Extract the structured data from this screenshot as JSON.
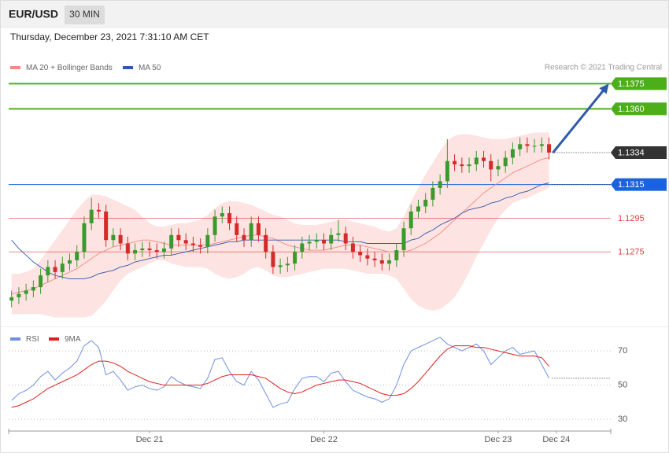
{
  "header": {
    "symbol": "EUR/USD",
    "interval": "30 MIN",
    "timestamp": "Thursday, December 23, 2021 7:31:10 AM CET"
  },
  "chart_data": [
    {
      "type": "candlestick",
      "credit": "Research © 2021 Trading Central",
      "xlim": [
        -0.4,
        82.5
      ],
      "ylim": [
        1.1233,
        1.1392
      ],
      "up_color": "#3a9a2e",
      "down_color": "#d42a2a",
      "open": [
        1.1246,
        1.1248,
        1.125,
        1.1252,
        1.1254,
        1.1261,
        1.1266,
        1.1263,
        1.1268,
        1.127,
        1.1275,
        1.1292,
        1.13,
        1.1299,
        1.1282,
        1.1285,
        1.128,
        1.1274,
        1.1276,
        1.1277,
        1.1276,
        1.1275,
        1.1277,
        1.1285,
        1.1282,
        1.128,
        1.1279,
        1.1278,
        1.1285,
        1.1296,
        1.1298,
        1.1292,
        1.1285,
        1.1282,
        1.1292,
        1.1285,
        1.1275,
        1.1266,
        1.1267,
        1.1268,
        1.1275,
        1.128,
        1.1281,
        1.1282,
        1.128,
        1.1285,
        1.1286,
        1.128,
        1.1275,
        1.1273,
        1.1271,
        1.127,
        1.1268,
        1.127,
        1.1276,
        1.1289,
        1.1299,
        1.1302,
        1.1306,
        1.1313,
        1.1317,
        1.1329,
        1.1327,
        1.1326,
        1.1327,
        1.1331,
        1.1329,
        1.1324,
        1.1326,
        1.1331,
        1.1336,
        1.1339,
        1.1338,
        1.1338,
        1.1339
      ],
      "high": [
        1.1252,
        1.1254,
        1.1256,
        1.1258,
        1.1265,
        1.127,
        1.127,
        1.1272,
        1.1274,
        1.1279,
        1.1296,
        1.1307,
        1.1304,
        1.1303,
        1.1289,
        1.1289,
        1.1284,
        1.128,
        1.1281,
        1.1281,
        1.128,
        1.1281,
        1.1289,
        1.1289,
        1.1286,
        1.1284,
        1.1283,
        1.1289,
        1.13,
        1.1302,
        1.1302,
        1.1296,
        1.1289,
        1.1296,
        1.1296,
        1.1289,
        1.1279,
        1.1271,
        1.1272,
        1.1279,
        1.1284,
        1.1285,
        1.1286,
        1.1286,
        1.1289,
        1.1294,
        1.129,
        1.1284,
        1.1279,
        1.1277,
        1.1275,
        1.1274,
        1.1274,
        1.128,
        1.1293,
        1.1303,
        1.1306,
        1.131,
        1.1317,
        1.1321,
        1.1342,
        1.1333,
        1.1331,
        1.1331,
        1.1335,
        1.1335,
        1.1333,
        1.133,
        1.1335,
        1.134,
        1.1343,
        1.1343,
        1.1342,
        1.1343,
        1.1343
      ],
      "low": [
        1.1242,
        1.1244,
        1.1246,
        1.1248,
        1.125,
        1.1257,
        1.1259,
        1.1259,
        1.1264,
        1.1266,
        1.1271,
        1.1288,
        1.1295,
        1.1278,
        1.1278,
        1.1276,
        1.127,
        1.127,
        1.1272,
        1.1272,
        1.1271,
        1.1271,
        1.1273,
        1.1278,
        1.1276,
        1.1275,
        1.1274,
        1.1274,
        1.1281,
        1.1292,
        1.1288,
        1.1281,
        1.1278,
        1.1278,
        1.1281,
        1.1271,
        1.1262,
        1.1262,
        1.1263,
        1.1264,
        1.1271,
        1.1276,
        1.1277,
        1.1276,
        1.1276,
        1.1281,
        1.1276,
        1.1271,
        1.1269,
        1.1267,
        1.1266,
        1.1264,
        1.1264,
        1.1266,
        1.1272,
        1.1285,
        1.1295,
        1.1298,
        1.1302,
        1.1309,
        1.1313,
        1.1323,
        1.1322,
        1.1322,
        1.1323,
        1.1325,
        1.1317,
        1.132,
        1.1322,
        1.1327,
        1.1332,
        1.1334,
        1.1334,
        1.1334,
        1.133
      ],
      "close": [
        1.1248,
        1.125,
        1.1252,
        1.1254,
        1.1261,
        1.1266,
        1.1263,
        1.1268,
        1.127,
        1.1275,
        1.1292,
        1.13,
        1.1299,
        1.1282,
        1.1285,
        1.128,
        1.1274,
        1.1276,
        1.1277,
        1.1276,
        1.1275,
        1.1277,
        1.1285,
        1.1282,
        1.128,
        1.1279,
        1.1278,
        1.1285,
        1.1296,
        1.1298,
        1.1292,
        1.1285,
        1.1282,
        1.1292,
        1.1285,
        1.1275,
        1.1266,
        1.1267,
        1.1268,
        1.1275,
        1.128,
        1.1281,
        1.1282,
        1.128,
        1.1285,
        1.1286,
        1.128,
        1.1275,
        1.1273,
        1.1271,
        1.127,
        1.1268,
        1.127,
        1.1276,
        1.1289,
        1.1299,
        1.1302,
        1.1306,
        1.1313,
        1.1317,
        1.1329,
        1.1327,
        1.1326,
        1.1327,
        1.1331,
        1.1329,
        1.1324,
        1.1326,
        1.1331,
        1.1336,
        1.1339,
        1.1338,
        1.1338,
        1.1339,
        1.1334
      ],
      "series": [
        {
          "name": "MA 20 + Bollinger Bands",
          "color": "#f08a84",
          "band_color": "#fde3e1",
          "values": [
            1.125,
            1.1251,
            1.1252,
            1.1253,
            1.1255,
            1.1257,
            1.1259,
            1.1261,
            1.1263,
            1.1265,
            1.1268,
            1.1271,
            1.1274,
            1.1276,
            1.1278,
            1.1279,
            1.128,
            1.1281,
            1.1282,
            1.1282,
            1.1281,
            1.128,
            1.1279,
            1.1279,
            1.1279,
            1.1279,
            1.1279,
            1.1279,
            1.128,
            1.1281,
            1.1282,
            1.1283,
            1.1284,
            1.1285,
            1.1285,
            1.1284,
            1.1283,
            1.1281,
            1.1279,
            1.1278,
            1.1277,
            1.1276,
            1.1276,
            1.1276,
            1.1277,
            1.1278,
            1.1279,
            1.1279,
            1.1279,
            1.1278,
            1.1277,
            1.1276,
            1.1275,
            1.1275,
            1.1275,
            1.1276,
            1.1278,
            1.128,
            1.1283,
            1.1286,
            1.129,
            1.1294,
            1.1298,
            1.1302,
            1.1306,
            1.131,
            1.1313,
            1.1316,
            1.1319,
            1.1322,
            1.1324,
            1.1326,
            1.1328,
            1.133,
            1.1331
          ],
          "upper": [
            1.1262,
            1.1262,
            1.1263,
            1.1265,
            1.127,
            1.1276,
            1.1282,
            1.1288,
            1.1294,
            1.13,
            1.1305,
            1.1309,
            1.1309,
            1.1308,
            1.1306,
            1.1304,
            1.1302,
            1.13,
            1.1296,
            1.1292,
            1.129,
            1.129,
            1.1291,
            1.1292,
            1.1292,
            1.1293,
            1.1294,
            1.1297,
            1.1301,
            1.1304,
            1.1305,
            1.1305,
            1.1304,
            1.1303,
            1.1301,
            1.1299,
            1.1297,
            1.1296,
            1.1294,
            1.1292,
            1.1291,
            1.1291,
            1.1291,
            1.1292,
            1.1293,
            1.1294,
            1.1294,
            1.1293,
            1.1292,
            1.1291,
            1.129,
            1.1288,
            1.1287,
            1.1289,
            1.1296,
            1.1305,
            1.1313,
            1.1321,
            1.1328,
            1.1335,
            1.1341,
            1.1344,
            1.1345,
            1.1345,
            1.1344,
            1.1343,
            1.1342,
            1.1342,
            1.1342,
            1.1343,
            1.1344,
            1.1345,
            1.1346,
            1.1346,
            1.1346
          ],
          "lower": [
            1.1238,
            1.1238,
            1.1238,
            1.1238,
            1.1238,
            1.1237,
            1.1236,
            1.1236,
            1.1236,
            1.1236,
            1.1236,
            1.1237,
            1.1241,
            1.1246,
            1.1252,
            1.1258,
            1.1262,
            1.1264,
            1.1266,
            1.1268,
            1.127,
            1.127,
            1.1268,
            1.1267,
            1.1266,
            1.1266,
            1.1266,
            1.1265,
            1.1262,
            1.126,
            1.1259,
            1.126,
            1.1262,
            1.1265,
            1.1266,
            1.1264,
            1.1261,
            1.126,
            1.126,
            1.1261,
            1.1262,
            1.1263,
            1.1264,
            1.1265,
            1.1265,
            1.1265,
            1.1265,
            1.1264,
            1.1263,
            1.1262,
            1.1262,
            1.1262,
            1.1261,
            1.1259,
            1.1253,
            1.1247,
            1.1243,
            1.1241,
            1.124,
            1.1241,
            1.1244,
            1.1248,
            1.1255,
            1.1263,
            1.1272,
            1.128,
            1.1288,
            1.1295,
            1.13,
            1.1304,
            1.1306,
            1.1307,
            1.1309,
            1.1311,
            1.1313
          ]
        },
        {
          "name": "MA 50",
          "color": "#2e5aa8",
          "values": [
            1.1282,
            1.1277,
            1.1273,
            1.1269,
            1.1266,
            1.1263,
            1.1261,
            1.126,
            1.1259,
            1.1259,
            1.1259,
            1.126,
            1.1262,
            1.1263,
            1.1264,
            1.1266,
            1.1267,
            1.1269,
            1.127,
            1.1271,
            1.1272,
            1.1273,
            1.1273,
            1.1274,
            1.1275,
            1.1276,
            1.1277,
            1.1278,
            1.1279,
            1.128,
            1.1281,
            1.1281,
            1.1282,
            1.1282,
            1.1282,
            1.1282,
            1.1282,
            1.1282,
            1.1282,
            1.1282,
            1.1282,
            1.1282,
            1.1282,
            1.1282,
            1.1282,
            1.1282,
            1.1281,
            1.1281,
            1.1281,
            1.128,
            1.128,
            1.128,
            1.128,
            1.128,
            1.128,
            1.1282,
            1.1283,
            1.1286,
            1.1288,
            1.1291,
            1.1293,
            1.1295,
            1.1298,
            1.13,
            1.1301,
            1.1302,
            1.1304,
            1.1305,
            1.1307,
            1.1308,
            1.131,
            1.1311,
            1.1313,
            1.1315,
            1.1316
          ]
        }
      ],
      "levels": [
        {
          "value": 1.1375,
          "color": "#4caf1a",
          "line": "solid",
          "box": true
        },
        {
          "value": 1.136,
          "label": "1.1360",
          "color": "#4caf1a",
          "line": "solid",
          "box": true
        },
        {
          "value": 1.1334,
          "color": "#333333",
          "line": "dotted",
          "box": true
        },
        {
          "value": 1.1315,
          "color": "#1a62e0",
          "line": "solid",
          "box": true
        },
        {
          "value": 1.1295,
          "color": "#e04040",
          "line": "solid",
          "box": false
        },
        {
          "value": 1.1275,
          "color": "#e04040",
          "line": "solid",
          "box": false
        }
      ],
      "arrow": {
        "from_level": 2,
        "to_level": 0,
        "color": "#2e5aa8"
      }
    },
    {
      "type": "line",
      "ylim": [
        25,
        82
      ],
      "yticks": [
        30,
        50,
        70
      ],
      "grid": true,
      "xticks": [
        {
          "value": 19,
          "label": "Dec 21"
        },
        {
          "value": 43,
          "label": "Dec 22"
        },
        {
          "value": 67,
          "label": "Dec 23"
        },
        {
          "value": 75,
          "label": "Dec 24"
        }
      ],
      "series": [
        {
          "name": "RSI",
          "color": "#6f8fe0",
          "values": [
            41,
            45,
            47,
            50,
            55,
            58,
            53,
            57,
            60,
            64,
            73,
            76,
            72,
            56,
            58,
            53,
            47,
            49,
            50,
            48,
            47,
            49,
            55,
            52,
            50,
            49,
            48,
            54,
            65,
            66,
            58,
            52,
            50,
            58,
            53,
            45,
            37,
            39,
            40,
            48,
            54,
            55,
            55,
            52,
            57,
            58,
            52,
            47,
            45,
            43,
            42,
            40,
            42,
            50,
            62,
            70,
            72,
            74,
            76,
            78,
            74,
            72,
            70,
            72,
            74,
            70,
            62,
            66,
            70,
            72,
            68,
            69,
            70,
            62,
            54
          ]
        },
        {
          "name": "9MA",
          "color": "#e02020",
          "values": [
            37,
            38,
            40,
            42,
            45,
            48,
            50,
            52,
            54,
            56,
            59,
            62,
            64,
            64,
            63,
            61,
            58,
            56,
            54,
            52,
            51,
            50,
            50,
            50,
            50,
            50,
            50,
            51,
            53,
            55,
            56,
            56,
            56,
            56,
            55,
            54,
            51,
            48,
            46,
            45,
            46,
            48,
            50,
            51,
            52,
            53,
            53,
            52,
            51,
            49,
            47,
            45,
            44,
            44,
            45,
            48,
            52,
            57,
            62,
            67,
            71,
            73,
            73,
            73,
            72,
            72,
            71,
            70,
            69,
            68,
            67,
            67,
            67,
            66,
            61
          ]
        }
      ]
    }
  ]
}
